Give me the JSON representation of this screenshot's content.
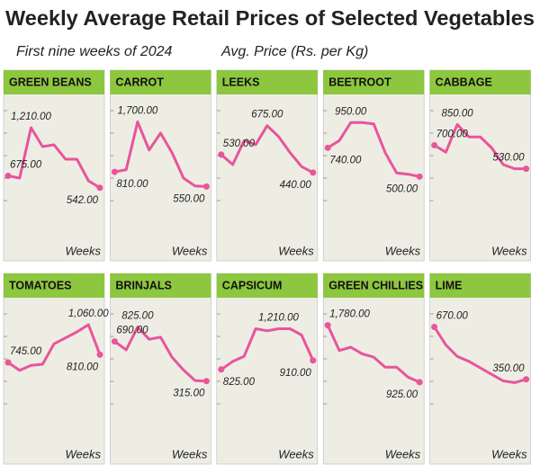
{
  "title": "Weekly Average Retail Prices of Selected Vegetables",
  "subtitle": "First nine weeks of 2024",
  "ylabel": "Avg. Price (Rs. per Kg)",
  "chart_data": [
    {
      "type": "line",
      "title": "GREEN BEANS",
      "xlabel": "Weeks",
      "color": "#e8559a",
      "ylim": [
        400,
        1400
      ],
      "values": [
        675,
        650,
        1210,
        1000,
        1020,
        860,
        860,
        620,
        542
      ],
      "value_labels": [
        "675.00",
        null,
        "1,210.00",
        null,
        null,
        null,
        null,
        null,
        "542.00"
      ]
    },
    {
      "type": "line",
      "title": "CARROT",
      "xlabel": "Weeks",
      "color": "#e8559a",
      "ylim": [
        300,
        1900
      ],
      "values": [
        810,
        850,
        1700,
        1200,
        1500,
        1150,
        700,
        560,
        550
      ],
      "value_labels": [
        "810.00",
        null,
        "1,700.00",
        null,
        null,
        null,
        null,
        null,
        "550.00"
      ]
    },
    {
      "type": "line",
      "title": "LEEKS",
      "xlabel": "Weeks",
      "color": "#e8559a",
      "ylim": [
        300,
        750
      ],
      "values": [
        530,
        480,
        600,
        580,
        675,
        620,
        540,
        470,
        440
      ],
      "value_labels": [
        "530.00",
        null,
        null,
        null,
        "675.00",
        null,
        null,
        null,
        "440.00"
      ]
    },
    {
      "type": "line",
      "title": "BEETROOT",
      "xlabel": "Weeks",
      "color": "#e8559a",
      "ylim": [
        300,
        1050
      ],
      "values": [
        740,
        800,
        950,
        950,
        940,
        700,
        530,
        520,
        500
      ],
      "value_labels": [
        "740.00",
        null,
        "950.00",
        null,
        null,
        null,
        null,
        null,
        "500.00"
      ]
    },
    {
      "type": "line",
      "title": "CABBAGE",
      "xlabel": "Weeks",
      "color": "#e8559a",
      "ylim": [
        300,
        950
      ],
      "values": [
        700,
        650,
        850,
        760,
        760,
        680,
        560,
        530,
        530
      ],
      "value_labels": [
        "700.00",
        null,
        "850.00",
        null,
        null,
        null,
        null,
        null,
        "530.00"
      ]
    },
    {
      "type": "line",
      "title": "TOMATOES",
      "xlabel": "Weeks",
      "color": "#e8559a",
      "ylim": [
        400,
        1150
      ],
      "values": [
        745,
        680,
        720,
        730,
        900,
        950,
        1000,
        1060,
        810
      ],
      "value_labels": [
        "745.00",
        null,
        null,
        null,
        null,
        null,
        null,
        "1,060.00",
        "810.00"
      ]
    },
    {
      "type": "line",
      "title": "BRINJALS",
      "xlabel": "Weeks",
      "color": "#e8559a",
      "ylim": [
        100,
        950
      ],
      "values": [
        690,
        610,
        825,
        710,
        730,
        540,
        420,
        320,
        315
      ],
      "value_labels": [
        "690.00",
        null,
        "825.00",
        null,
        null,
        null,
        null,
        null,
        "315.00"
      ]
    },
    {
      "type": "line",
      "title": "CAPSICUM",
      "xlabel": "Weeks",
      "color": "#e8559a",
      "ylim": [
        500,
        1350
      ],
      "values": [
        825,
        900,
        950,
        1210,
        1190,
        1210,
        1210,
        1150,
        910
      ],
      "value_labels": [
        "825.00",
        null,
        null,
        null,
        null,
        "1,210.00",
        null,
        null,
        "910.00"
      ]
    },
    {
      "type": "line",
      "title": "GREEN CHILLIES",
      "xlabel": "Weeks",
      "color": "#e8559a",
      "ylim": [
        600,
        1950
      ],
      "values": [
        1780,
        1400,
        1450,
        1350,
        1300,
        1150,
        1150,
        1000,
        925
      ],
      "value_labels": [
        "1,780.00",
        null,
        null,
        null,
        null,
        null,
        null,
        null,
        "925.00"
      ]
    },
    {
      "type": "line",
      "title": "LIME",
      "xlabel": "Weeks",
      "color": "#e8559a",
      "ylim": [
        200,
        750
      ],
      "values": [
        670,
        560,
        490,
        460,
        420,
        380,
        340,
        330,
        350
      ],
      "value_labels": [
        "670.00",
        null,
        null,
        null,
        null,
        null,
        null,
        null,
        "350.00"
      ]
    }
  ]
}
